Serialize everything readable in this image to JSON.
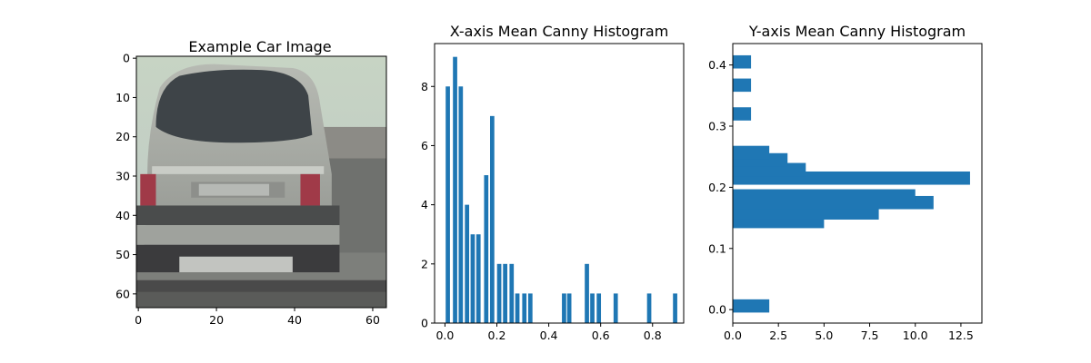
{
  "chart_data": [
    {
      "type": "image",
      "title": "Example Car Image",
      "xticks": [
        "0",
        "20",
        "40",
        "60"
      ],
      "yticks": [
        "0",
        "10",
        "20",
        "30",
        "40",
        "50",
        "60"
      ],
      "xlim": [
        -0.5,
        63.5
      ],
      "ylim": [
        63.5,
        -0.5
      ],
      "image_size": [
        64,
        64
      ],
      "image_description_colors": {
        "sky": "#c9d6cc",
        "car_body": "#a9aca6",
        "window": "#3d4348",
        "shadow": "#3b3a3c",
        "road": "#8a8c88",
        "taillight": "#a03a48"
      }
    },
    {
      "type": "bar",
      "title": "X-axis Mean Canny Histogram",
      "xticks": [
        "0.0",
        "0.2",
        "0.4",
        "0.6",
        "0.8"
      ],
      "yticks": [
        "0",
        "2",
        "4",
        "6",
        "8"
      ],
      "xlim": [
        -0.04,
        0.92
      ],
      "ylim": [
        0,
        9.45
      ],
      "bar_width": 0.0165,
      "x": [
        0.011,
        0.039,
        0.061,
        0.085,
        0.107,
        0.129,
        0.159,
        0.182,
        0.209,
        0.232,
        0.257,
        0.279,
        0.306,
        0.329,
        0.459,
        0.479,
        0.547,
        0.568,
        0.593,
        0.658,
        0.787,
        0.887
      ],
      "values": [
        8,
        9,
        8,
        4,
        3,
        3,
        5,
        7,
        2,
        2,
        2,
        1,
        1,
        1,
        1,
        1,
        2,
        1,
        1,
        1,
        1,
        1
      ],
      "color": "#1f77b4"
    },
    {
      "type": "barh",
      "title": "Y-axis Mean Canny Histogram",
      "xticks": [
        "0.0",
        "2.5",
        "5.0",
        "7.5",
        "10.0",
        "12.5"
      ],
      "yticks": [
        "0.0",
        "0.1",
        "0.2",
        "0.3",
        "0.4"
      ],
      "xlim": [
        0,
        13.65
      ],
      "ylim": [
        -0.022,
        0.435
      ],
      "bar_height": 0.0216,
      "y": [
        0.006,
        0.144,
        0.158,
        0.175,
        0.186,
        0.215,
        0.229,
        0.245,
        0.257,
        0.32,
        0.367,
        0.405
      ],
      "values": [
        2,
        5,
        8,
        11,
        10,
        13,
        4,
        3,
        2,
        1,
        1,
        1
      ],
      "color": "#1f77b4"
    }
  ]
}
